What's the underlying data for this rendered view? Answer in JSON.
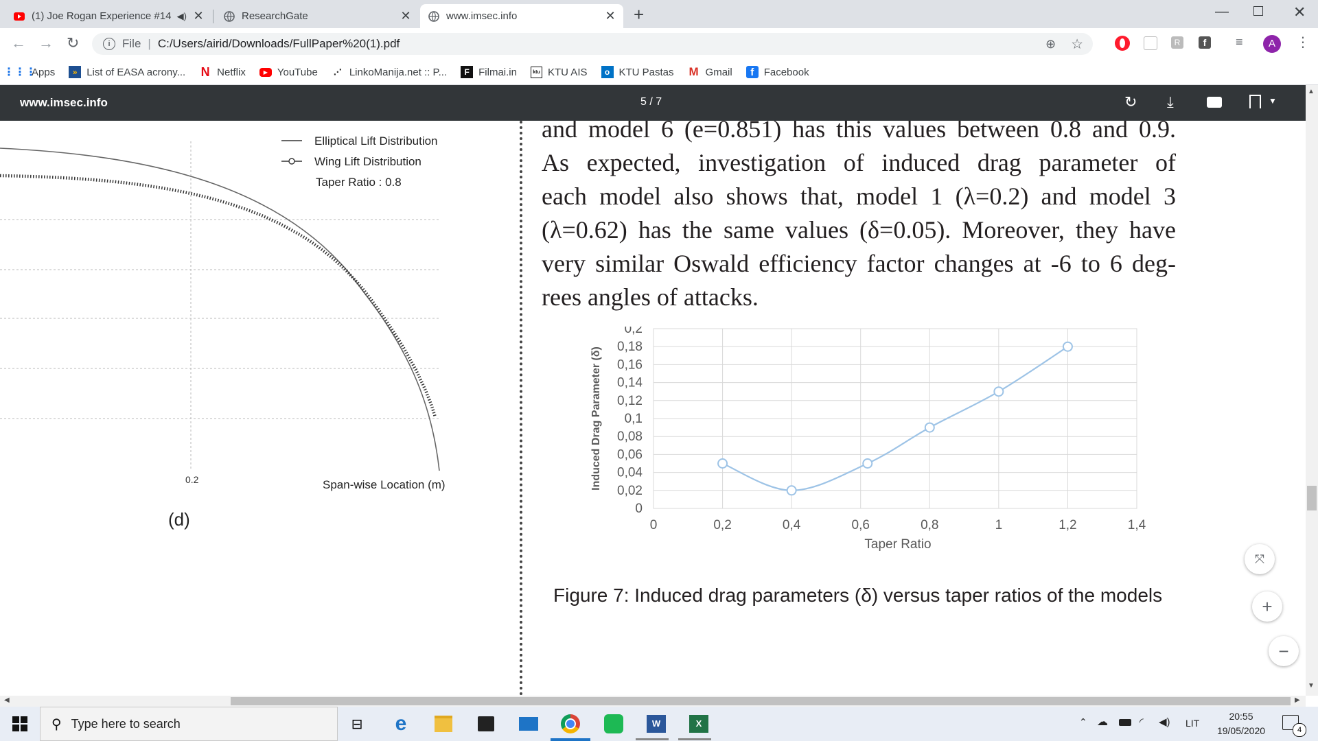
{
  "browser": {
    "tabs": [
      {
        "title": "(1) Joe Rogan Experience #14",
        "audio_icon": "speaker-icon"
      },
      {
        "title": "ResearchGate"
      },
      {
        "title": "www.imsec.info"
      }
    ],
    "new_tab_label": "+",
    "address": {
      "scheme_label": "File",
      "url": "C:/Users/airid/Downloads/FullPaper%20(1).pdf"
    },
    "profile_initial": "A",
    "bookmarks": [
      {
        "label": "Apps",
        "icon": "apps-grid-icon"
      },
      {
        "label": "List of EASA acrony...",
        "icon": "easa-icon"
      },
      {
        "label": "Netflix",
        "icon": "netflix-icon"
      },
      {
        "label": "YouTube",
        "icon": "youtube-icon"
      },
      {
        "label": "LinkoManija.net :: P...",
        "icon": "linkomanija-icon"
      },
      {
        "label": "Filmai.in",
        "icon": "filmai-icon"
      },
      {
        "label": "KTU AIS",
        "icon": "ktu-icon"
      },
      {
        "label": "KTU Pastas",
        "icon": "outlook-icon"
      },
      {
        "label": "Gmail",
        "icon": "gmail-icon"
      },
      {
        "label": "Facebook",
        "icon": "facebook-icon"
      }
    ]
  },
  "pdf_viewer": {
    "title": "www.imsec.info",
    "page_indicator": "5 / 7"
  },
  "document": {
    "left_figure": {
      "legend": [
        "Elliptical Lift Distribution",
        "Wing Lift Distribution",
        "Taper Ratio : 0.8"
      ],
      "tick_label": "0.2",
      "xlabel": "Span-wise Location (m)",
      "panel_label": "(d)"
    },
    "paragraph_lines": [
      "and model 6 (e=0.851) has this values between 0.8 and 0.9.",
      "As expected, investigation of induced drag parameter of",
      "each model also shows that, model 1 (λ=0.2) and model 3",
      "(λ=0.62) has the same values (δ=0.05). Moreover, they have",
      "very similar Oswald efficiency factor changes at -6 to 6 deg-",
      "rees angles of attacks."
    ],
    "caption": "Figure 7: Induced drag parameters (δ) versus taper ratios of the models"
  },
  "chart_data": {
    "type": "line",
    "title": "",
    "xlabel": "Taper Ratio",
    "ylabel": "Induced Drag Parameter (δ)",
    "xlim": [
      0,
      1.4
    ],
    "ylim": [
      0,
      0.2
    ],
    "x_ticks": [
      "0",
      "0,2",
      "0,4",
      "0,6",
      "0,8",
      "1",
      "1,2",
      "1,4"
    ],
    "y_ticks": [
      "0",
      "0,02",
      "0,04",
      "0,06",
      "0,08",
      "0,1",
      "0,12",
      "0,14",
      "0,16",
      "0,18",
      "0,2"
    ],
    "grid": true,
    "color": "#9dc3e6",
    "series": [
      {
        "x": [
          0.2,
          0.4,
          0.62,
          0.8,
          1.0,
          1.2
        ],
        "y": [
          0.05,
          0.02,
          0.05,
          0.09,
          0.13,
          0.18
        ]
      }
    ]
  },
  "taskbar": {
    "search_placeholder": "Type here to search",
    "language": "LIT",
    "time": "20:55",
    "date": "19/05/2020",
    "notification_count": "4"
  }
}
